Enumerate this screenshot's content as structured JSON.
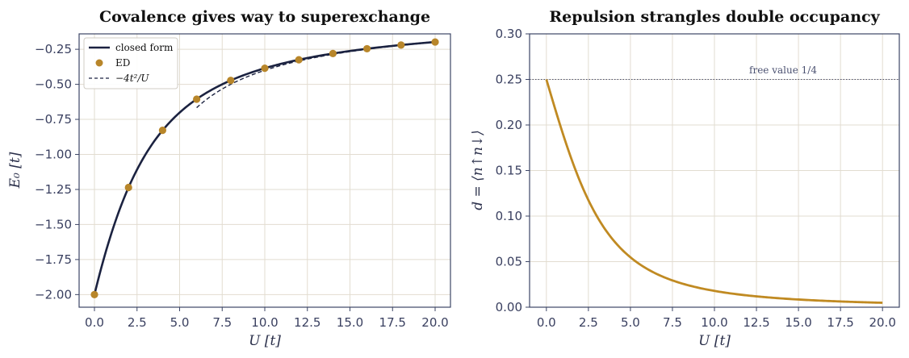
{
  "chart_data": [
    {
      "type": "line",
      "title": "Covalence gives way to superexchange",
      "xlabel": "U  [t]",
      "ylabel": "E₀  [t]",
      "xlim": [
        -0.9,
        20.9
      ],
      "ylim": [
        -2.09,
        -0.14
      ],
      "xticks": [
        "0.0",
        "2.5",
        "5.0",
        "7.5",
        "10.0",
        "12.5",
        "15.0",
        "17.5",
        "20.0"
      ],
      "yticks": [
        "−0.25",
        "−0.50",
        "−0.75",
        "−1.00",
        "−1.25",
        "−1.50",
        "−1.75",
        "−2.00"
      ],
      "grid": true,
      "legend_position": "top-left",
      "series": [
        {
          "name": "closed form",
          "style": "solid-line",
          "color": "#1b2240",
          "x_range": [
            0,
            20
          ]
        },
        {
          "name": "ED",
          "style": "markers",
          "color": "#b8862a",
          "x": [
            0,
            2,
            4,
            6,
            8,
            10,
            12,
            14,
            16,
            18,
            20
          ],
          "y": [
            -2.0,
            -1.236,
            -0.828,
            -0.606,
            -0.472,
            -0.385,
            -0.325,
            -0.28,
            -0.246,
            -0.22,
            -0.198
          ]
        },
        {
          "name": "−4t²/U",
          "style": "dashed-line",
          "color": "#1b2240",
          "x_range": [
            6,
            20
          ]
        }
      ]
    },
    {
      "type": "line",
      "title": "Repulsion strangles double occupancy",
      "xlabel": "U  [t]",
      "ylabel": "d = ⟨n↑n↓⟩",
      "xlim": [
        -1.0,
        21.0
      ],
      "ylim": [
        0.0,
        0.3
      ],
      "xticks": [
        "0.0",
        "2.5",
        "5.0",
        "7.5",
        "10.0",
        "12.5",
        "15.0",
        "17.5",
        "20.0"
      ],
      "yticks": [
        "0.00",
        "0.05",
        "0.10",
        "0.15",
        "0.20",
        "0.25",
        "0.30"
      ],
      "grid": true,
      "series": [
        {
          "name": "",
          "style": "solid-line",
          "color": "#c08a22",
          "x_range": [
            0,
            20
          ]
        }
      ],
      "reference_line": {
        "y": 0.25,
        "label": "free value 1/4",
        "style": "dotted"
      }
    }
  ]
}
